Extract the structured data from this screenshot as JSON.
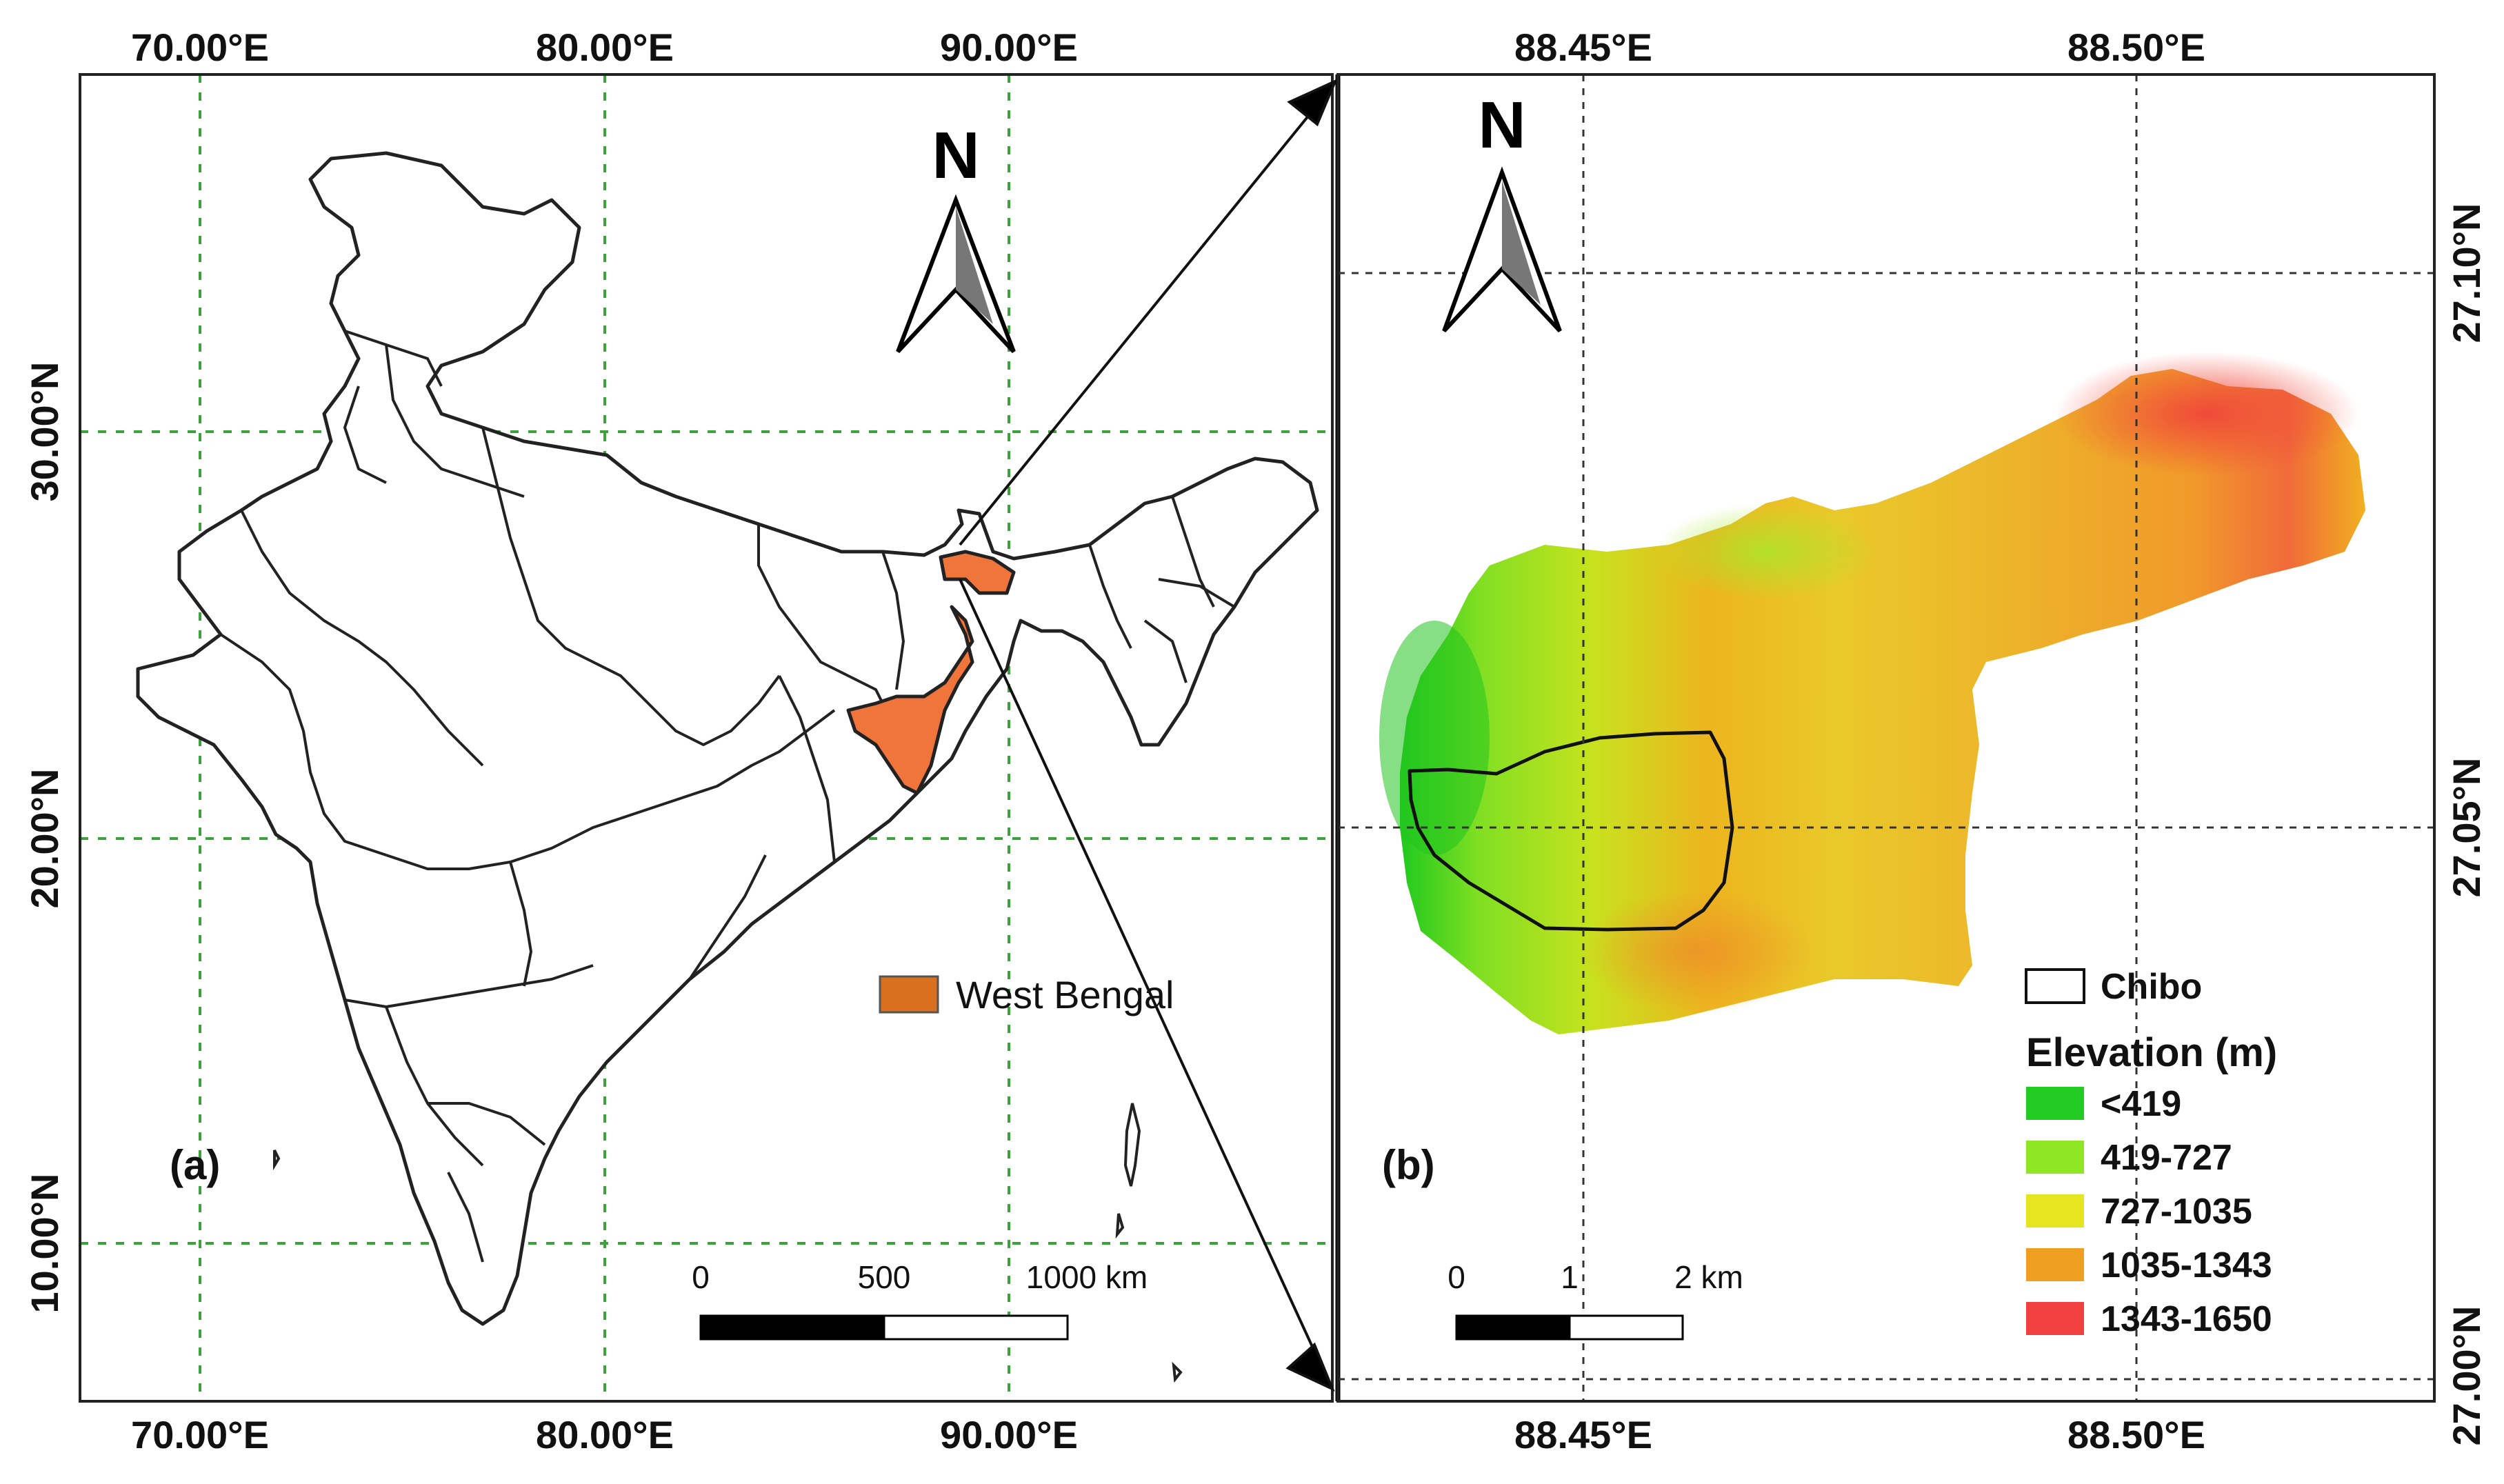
{
  "panel_a": {
    "label": "(a)",
    "north": "N",
    "top_ticks": [
      "70.00°E",
      "80.00°E",
      "90.00°E"
    ],
    "bottom_ticks": [
      "70.00°E",
      "80.00°E",
      "90.00°E"
    ],
    "left_ticks": [
      "30.00°N",
      "20.00°N",
      "10.00°N"
    ],
    "legend_label": "West Bengal",
    "highlight_color": "#f0753a",
    "scale_labels": [
      "0",
      "500",
      "1000 km"
    ]
  },
  "panel_b": {
    "label": "(b)",
    "north": "N",
    "top_ticks": [
      "88.45°E",
      "88.50°E"
    ],
    "bottom_ticks": [
      "88.45°E",
      "88.50°E"
    ],
    "right_ticks": [
      "27.10°N",
      "27.05°N",
      "27.00°N"
    ],
    "boundary_label": "Chibo",
    "legend_title": "Elevation (m)",
    "classes": [
      {
        "label": "<419",
        "color": "#22cc22"
      },
      {
        "label": "419-727",
        "color": "#8fe624"
      },
      {
        "label": "727-1035",
        "color": "#e6e620"
      },
      {
        "label": "1035-1343",
        "color": "#f0a020"
      },
      {
        "label": "1343-1650",
        "color": "#f04040"
      }
    ],
    "scale_labels": [
      "0",
      "1",
      "2 km"
    ]
  }
}
